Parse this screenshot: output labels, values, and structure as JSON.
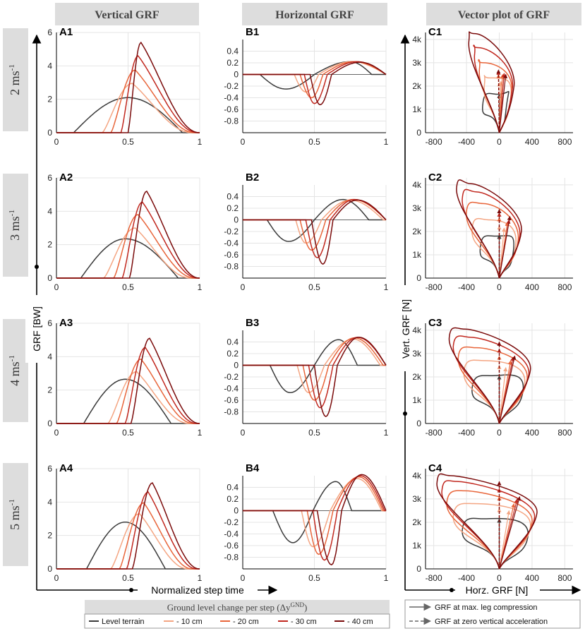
{
  "headers": {
    "vertical": "Vertical GRF",
    "horizontal": "Horizontal GRF",
    "vector": "Vector plot of GRF"
  },
  "rows": [
    {
      "speed": "2 ms",
      "exponent": "-1"
    },
    {
      "speed": "3 ms",
      "exponent": "-1"
    },
    {
      "speed": "4 ms",
      "exponent": "-1"
    },
    {
      "speed": "5 ms",
      "exponent": "-1"
    }
  ],
  "axis_titles": {
    "vertical_y": "GRF [BW]",
    "time_x": "Normalized step time",
    "vector_y": "Vert. GRF [N]",
    "vector_x": "Horz. GRF [N]"
  },
  "panel_labels": {
    "A": [
      "A1",
      "A2",
      "A3",
      "A4"
    ],
    "B": [
      "B1",
      "B2",
      "B3",
      "B4"
    ],
    "C": [
      "C1",
      "C2",
      "C3",
      "C4"
    ]
  },
  "legend": {
    "title": "Ground level change per step (Δy",
    "title_sup": "GND",
    "title_end": ")",
    "items": [
      {
        "label": "Level terrain",
        "color": "#3a3a3a"
      },
      {
        "label": "- 10 cm",
        "color": "#f4a582"
      },
      {
        "label": "- 20 cm",
        "color": "#e8653a"
      },
      {
        "label": "- 30 cm",
        "color": "#c1271e"
      },
      {
        "label": "- 40 cm",
        "color": "#7a0a0a"
      }
    ],
    "arrows": [
      {
        "label": "GRF at max. leg compression",
        "style": "solid"
      },
      {
        "label": "GRF at zero vertical acceleration",
        "style": "dashed"
      }
    ]
  },
  "chart_data": [
    {
      "id": "vertical-grf",
      "type": "line",
      "title": "Vertical GRF",
      "xlabel": "Normalized step time",
      "ylabel": "GRF [BW]",
      "xlim": [
        0,
        1
      ],
      "ylim": [
        0,
        6
      ],
      "xticks": [
        "0",
        "0.5",
        "1"
      ],
      "yticks": [
        "0",
        "2",
        "4",
        "6"
      ],
      "series_names": [
        "Level terrain",
        "- 10 cm",
        "- 20 cm",
        "- 30 cm",
        "- 40 cm"
      ],
      "panels": [
        {
          "label": "A1",
          "series": [
            {
              "onset": 0.12,
              "peak_t": 0.5,
              "peak": 2.1,
              "end": 0.88
            },
            {
              "onset": 0.32,
              "peak_t": 0.53,
              "peak": 2.95,
              "end": 0.95
            },
            {
              "onset": 0.38,
              "peak_t": 0.55,
              "peak": 3.75,
              "end": 0.97
            },
            {
              "onset": 0.45,
              "peak_t": 0.57,
              "peak": 4.6,
              "end": 0.99
            },
            {
              "onset": 0.5,
              "peak_t": 0.59,
              "peak": 5.4,
              "end": 1.0
            }
          ]
        },
        {
          "label": "A2",
          "series": [
            {
              "onset": 0.17,
              "peak_t": 0.48,
              "peak": 2.35,
              "end": 0.85
            },
            {
              "onset": 0.33,
              "peak_t": 0.55,
              "peak": 3.0,
              "end": 0.94
            },
            {
              "onset": 0.4,
              "peak_t": 0.57,
              "peak": 3.8,
              "end": 0.97
            },
            {
              "onset": 0.46,
              "peak_t": 0.6,
              "peak": 4.55,
              "end": 0.99
            },
            {
              "onset": 0.51,
              "peak_t": 0.63,
              "peak": 5.2,
              "end": 1.0
            }
          ]
        },
        {
          "label": "A3",
          "series": [
            {
              "onset": 0.19,
              "peak_t": 0.48,
              "peak": 2.65,
              "end": 0.8
            },
            {
              "onset": 0.36,
              "peak_t": 0.56,
              "peak": 3.1,
              "end": 0.93
            },
            {
              "onset": 0.42,
              "peak_t": 0.59,
              "peak": 3.85,
              "end": 0.96
            },
            {
              "onset": 0.48,
              "peak_t": 0.62,
              "peak": 4.55,
              "end": 0.98
            },
            {
              "onset": 0.52,
              "peak_t": 0.65,
              "peak": 5.1,
              "end": 1.0
            }
          ]
        },
        {
          "label": "A4",
          "series": [
            {
              "onset": 0.21,
              "peak_t": 0.48,
              "peak": 2.8,
              "end": 0.76
            },
            {
              "onset": 0.38,
              "peak_t": 0.58,
              "peak": 3.3,
              "end": 0.92
            },
            {
              "onset": 0.44,
              "peak_t": 0.61,
              "peak": 3.95,
              "end": 0.95
            },
            {
              "onset": 0.49,
              "peak_t": 0.64,
              "peak": 4.6,
              "end": 0.98
            },
            {
              "onset": 0.53,
              "peak_t": 0.67,
              "peak": 5.15,
              "end": 1.0
            }
          ]
        }
      ]
    },
    {
      "id": "horizontal-grf",
      "type": "line",
      "title": "Horizontal GRF",
      "xlabel": "Normalized step time",
      "ylabel": "GRF [BW]",
      "xlim": [
        0,
        1
      ],
      "ylim": [
        -1,
        0.6
      ],
      "xticks": [
        "0",
        "0.5",
        "1"
      ],
      "yticks": [
        "0.4",
        "0.2",
        "0",
        "-0.2",
        "-0.4",
        "-0.6",
        "-0.8"
      ],
      "yticks_values": [
        0.4,
        0.2,
        0,
        -0.2,
        -0.4,
        -0.6,
        -0.8
      ],
      "series_names": [
        "Level terrain",
        "- 10 cm",
        "- 20 cm",
        "- 30 cm",
        "- 40 cm"
      ],
      "panels": [
        {
          "label": "B1",
          "series": [
            {
              "onset": 0.12,
              "min_t": 0.3,
              "min": -0.25,
              "cross": 0.5,
              "max_t": 0.75,
              "max": 0.22,
              "end": 0.9
            },
            {
              "onset": 0.36,
              "min_t": 0.44,
              "min": -0.3,
              "cross": 0.53,
              "max_t": 0.76,
              "max": 0.22,
              "end": 1.0
            },
            {
              "onset": 0.4,
              "min_t": 0.48,
              "min": -0.4,
              "cross": 0.56,
              "max_t": 0.78,
              "max": 0.22,
              "end": 1.0
            },
            {
              "onset": 0.43,
              "min_t": 0.5,
              "min": -0.5,
              "cross": 0.59,
              "max_t": 0.8,
              "max": 0.22,
              "end": 1.0
            },
            {
              "onset": 0.47,
              "min_t": 0.54,
              "min": -0.52,
              "cross": 0.62,
              "max_t": 0.82,
              "max": 0.21,
              "end": 1.0
            }
          ]
        },
        {
          "label": "B2",
          "series": [
            {
              "onset": 0.17,
              "min_t": 0.32,
              "min": -0.37,
              "cross": 0.5,
              "max_t": 0.7,
              "max": 0.35,
              "end": 0.88
            },
            {
              "onset": 0.37,
              "min_t": 0.44,
              "min": -0.4,
              "cross": 0.55,
              "max_t": 0.75,
              "max": 0.34,
              "end": 0.98
            },
            {
              "onset": 0.4,
              "min_t": 0.48,
              "min": -0.52,
              "cross": 0.58,
              "max_t": 0.77,
              "max": 0.35,
              "end": 1.0
            },
            {
              "onset": 0.44,
              "min_t": 0.52,
              "min": -0.65,
              "cross": 0.61,
              "max_t": 0.78,
              "max": 0.35,
              "end": 1.0
            },
            {
              "onset": 0.48,
              "min_t": 0.56,
              "min": -0.76,
              "cross": 0.63,
              "max_t": 0.8,
              "max": 0.34,
              "end": 1.0
            }
          ]
        },
        {
          "label": "B3",
          "series": [
            {
              "onset": 0.19,
              "min_t": 0.33,
              "min": -0.47,
              "cross": 0.5,
              "max_t": 0.67,
              "max": 0.44,
              "end": 0.8
            },
            {
              "onset": 0.38,
              "min_t": 0.46,
              "min": -0.47,
              "cross": 0.57,
              "max_t": 0.77,
              "max": 0.45,
              "end": 0.96
            },
            {
              "onset": 0.42,
              "min_t": 0.5,
              "min": -0.6,
              "cross": 0.6,
              "max_t": 0.78,
              "max": 0.47,
              "end": 0.98
            },
            {
              "onset": 0.46,
              "min_t": 0.54,
              "min": -0.73,
              "cross": 0.63,
              "max_t": 0.8,
              "max": 0.48,
              "end": 1.0
            },
            {
              "onset": 0.5,
              "min_t": 0.58,
              "min": -0.88,
              "cross": 0.66,
              "max_t": 0.81,
              "max": 0.48,
              "end": 1.0
            }
          ]
        },
        {
          "label": "B4",
          "series": [
            {
              "onset": 0.21,
              "min_t": 0.35,
              "min": -0.55,
              "cross": 0.49,
              "max_t": 0.65,
              "max": 0.5,
              "end": 0.76
            },
            {
              "onset": 0.41,
              "min_t": 0.49,
              "min": -0.62,
              "cross": 0.61,
              "max_t": 0.8,
              "max": 0.55,
              "end": 0.97
            },
            {
              "onset": 0.45,
              "min_t": 0.53,
              "min": -0.75,
              "cross": 0.63,
              "max_t": 0.81,
              "max": 0.58,
              "end": 0.98
            },
            {
              "onset": 0.49,
              "min_t": 0.57,
              "min": -0.85,
              "cross": 0.66,
              "max_t": 0.82,
              "max": 0.6,
              "end": 0.99
            },
            {
              "onset": 0.52,
              "min_t": 0.62,
              "min": -0.93,
              "cross": 0.69,
              "max_t": 0.83,
              "max": 0.62,
              "end": 1.0
            }
          ]
        }
      ]
    },
    {
      "id": "vector-grf",
      "type": "line",
      "title": "Vector plot of GRF",
      "xlabel": "Horz. GRF [N]",
      "ylabel": "Vert. GRF [N]",
      "xlim": [
        -900,
        900
      ],
      "ylim": [
        0,
        4300
      ],
      "xticks": [
        "-800",
        "-400",
        "0",
        "400",
        "800"
      ],
      "xticks_values": [
        -800,
        -400,
        0,
        400,
        800
      ],
      "yticks": [
        "0",
        "1k",
        "2k",
        "3k",
        "4k"
      ],
      "yticks_values": [
        0,
        1000,
        2000,
        3000,
        4000
      ],
      "series_names": [
        "Level terrain",
        "- 10 cm",
        "- 20 cm",
        "- 30 cm",
        "- 40 cm"
      ],
      "panels": [
        {
          "label": "C1",
          "loops": [
            {
              "left_x": -200,
              "left_y": 1250,
              "peak_x": -20,
              "peak_y": 1650,
              "right_x": 90,
              "right_y": 1200,
              "arrow_solid": [
                0,
                1650
              ],
              "arrow_dashed": [
                0,
                1650
              ]
            },
            {
              "left_x": -180,
              "left_y": 2100,
              "peak_x": -120,
              "peak_y": 2350,
              "right_x": 140,
              "right_y": 1500,
              "arrow_solid": [
                20,
                2200
              ],
              "arrow_dashed": [
                0,
                2150
              ]
            },
            {
              "left_x": -240,
              "left_y": 2800,
              "peak_x": -200,
              "peak_y": 3000,
              "right_x": 150,
              "right_y": 1700,
              "arrow_solid": [
                40,
                2500
              ],
              "arrow_dashed": [
                -10,
                2500
              ]
            },
            {
              "left_x": -300,
              "left_y": 3400,
              "peak_x": -260,
              "peak_y": 3650,
              "right_x": 160,
              "right_y": 1900,
              "arrow_solid": [
                60,
                2550
              ],
              "arrow_dashed": [
                -10,
                2650
              ]
            },
            {
              "left_x": -370,
              "left_y": 3950,
              "peak_x": -300,
              "peak_y": 4250,
              "right_x": 180,
              "right_y": 2000,
              "arrow_solid": [
                80,
                2500
              ],
              "arrow_dashed": [
                -10,
                2700
              ]
            }
          ]
        },
        {
          "label": "C2",
          "loops": [
            {
              "left_x": -230,
              "left_y": 1350,
              "peak_x": -40,
              "peak_y": 1800,
              "right_x": 170,
              "right_y": 1100,
              "arrow_solid": [
                0,
                1850
              ],
              "arrow_dashed": [
                0,
                1850
              ]
            },
            {
              "left_x": -330,
              "left_y": 2150,
              "peak_x": -130,
              "peak_y": 2500,
              "right_x": 200,
              "right_y": 1400,
              "arrow_solid": [
                60,
                2150
              ],
              "arrow_dashed": [
                0,
                2250
              ]
            },
            {
              "left_x": -400,
              "left_y": 2850,
              "peak_x": -200,
              "peak_y": 3200,
              "right_x": 230,
              "right_y": 1600,
              "arrow_solid": [
                100,
                2400
              ],
              "arrow_dashed": [
                0,
                2600
              ]
            },
            {
              "left_x": -450,
              "left_y": 3450,
              "peak_x": -280,
              "peak_y": 3700,
              "right_x": 250,
              "right_y": 1800,
              "arrow_solid": [
                120,
                2500
              ],
              "arrow_dashed": [
                0,
                2800
              ]
            },
            {
              "left_x": -520,
              "left_y": 3900,
              "peak_x": -350,
              "peak_y": 4050,
              "right_x": 270,
              "right_y": 2000,
              "arrow_solid": [
                130,
                2650
              ],
              "arrow_dashed": [
                0,
                2950
              ]
            }
          ]
        },
        {
          "label": "C3",
          "loops": [
            {
              "left_x": -330,
              "left_y": 1550,
              "peak_x": -100,
              "peak_y": 2050,
              "right_x": 290,
              "right_y": 1400,
              "arrow_solid": [
                0,
                2050
              ],
              "arrow_dashed": [
                0,
                2050
              ]
            },
            {
              "left_x": -430,
              "left_y": 2250,
              "peak_x": -200,
              "peak_y": 2700,
              "right_x": 310,
              "right_y": 1700,
              "arrow_solid": [
                80,
                2400
              ],
              "arrow_dashed": [
                0,
                2500
              ]
            },
            {
              "left_x": -500,
              "left_y": 2850,
              "peak_x": -280,
              "peak_y": 3250,
              "right_x": 340,
              "right_y": 1900,
              "arrow_solid": [
                140,
                2700
              ],
              "arrow_dashed": [
                0,
                2900
              ]
            },
            {
              "left_x": -560,
              "left_y": 3350,
              "peak_x": -350,
              "peak_y": 3700,
              "right_x": 360,
              "right_y": 2100,
              "arrow_solid": [
                170,
                2850
              ],
              "arrow_dashed": [
                0,
                3200
              ]
            },
            {
              "left_x": -610,
              "left_y": 3700,
              "peak_x": -420,
              "peak_y": 4050,
              "right_x": 380,
              "right_y": 2300,
              "arrow_solid": [
                190,
                2900
              ],
              "arrow_dashed": [
                0,
                3500
              ]
            }
          ]
        },
        {
          "label": "C4",
          "loops": [
            {
              "left_x": -450,
              "left_y": 1700,
              "peak_x": -200,
              "peak_y": 2150,
              "right_x": 350,
              "right_y": 1400,
              "arrow_solid": [
                0,
                2150
              ],
              "arrow_dashed": [
                0,
                2150
              ]
            },
            {
              "left_x": -560,
              "left_y": 2300,
              "peak_x": -320,
              "peak_y": 2800,
              "right_x": 380,
              "right_y": 1800,
              "arrow_solid": [
                120,
                2500
              ],
              "arrow_dashed": [
                0,
                2600
              ]
            },
            {
              "left_x": -640,
              "left_y": 2850,
              "peak_x": -420,
              "peak_y": 3350,
              "right_x": 400,
              "right_y": 2000,
              "arrow_solid": [
                180,
                2800
              ],
              "arrow_dashed": [
                0,
                3100
              ]
            },
            {
              "left_x": -700,
              "left_y": 3350,
              "peak_x": -520,
              "peak_y": 3750,
              "right_x": 430,
              "right_y": 2200,
              "arrow_solid": [
                220,
                3000
              ],
              "arrow_dashed": [
                0,
                3450
              ]
            },
            {
              "left_x": -760,
              "left_y": 3700,
              "peak_x": -600,
              "peak_y": 4000,
              "right_x": 460,
              "right_y": 2400,
              "arrow_solid": [
                250,
                3100
              ],
              "arrow_dashed": [
                0,
                3750
              ]
            }
          ]
        }
      ]
    }
  ]
}
